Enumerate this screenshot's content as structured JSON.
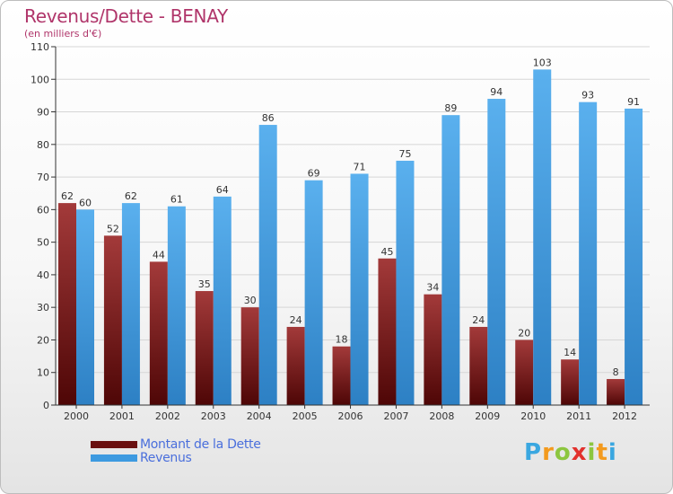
{
  "title": "Revenus/Dette - BENAY",
  "subtitle": "(en milliers d'€)",
  "brand": {
    "letters": [
      "P",
      "r",
      "o",
      "x",
      "i",
      "t",
      "i"
    ],
    "colors": [
      "#3aa7e0",
      "#f39a1e",
      "#8cc63f",
      "#e2312d",
      "#8cc63f",
      "#f39a1e",
      "#3aa7e0"
    ]
  },
  "chart_data": {
    "type": "bar",
    "categories": [
      "2000",
      "2001",
      "2002",
      "2003",
      "2004",
      "2005",
      "2006",
      "2007",
      "2008",
      "2009",
      "2010",
      "2011",
      "2012"
    ],
    "series": [
      {
        "name": "Montant de la Dette",
        "color": "#7a1a1a",
        "values": [
          62,
          52,
          44,
          35,
          30,
          24,
          18,
          45,
          34,
          24,
          20,
          14,
          8
        ]
      },
      {
        "name": "Revenus",
        "color": "#3d9ae0",
        "values": [
          60,
          62,
          61,
          64,
          86,
          69,
          71,
          75,
          89,
          94,
          103,
          93,
          91
        ]
      }
    ],
    "ylim": [
      0,
      110
    ],
    "yticks": [
      0,
      10,
      20,
      30,
      40,
      50,
      60,
      70,
      80,
      90,
      100,
      110
    ],
    "grid": true,
    "legend_position": "bottom-left"
  }
}
